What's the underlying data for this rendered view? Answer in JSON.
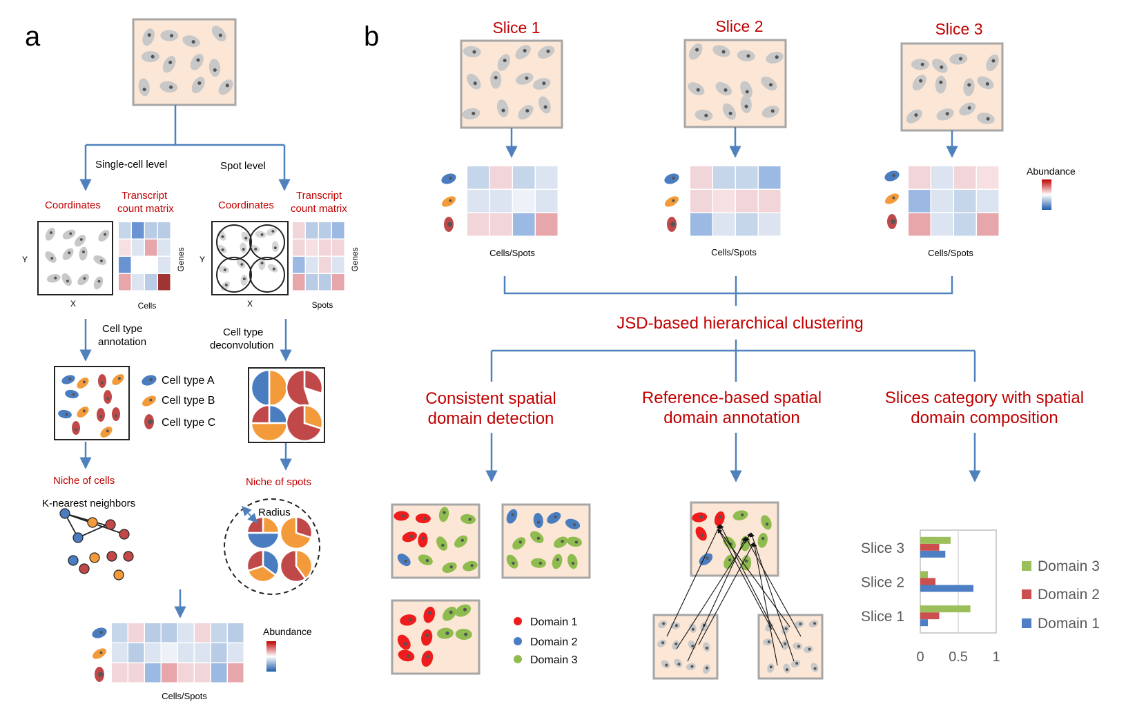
{
  "panel_a": {
    "label": "a",
    "branch_single": "Single-cell level",
    "branch_spot": "Spot level",
    "coordinates": "Coordinates",
    "transcript_line1": "Transcript",
    "transcript_line2": "count matrix",
    "axis_y": "Y",
    "axis_x": "X",
    "genes": "Genes",
    "cells": "Cells",
    "spots": "Spots",
    "annotation_line1": "Cell type",
    "annotation_line2": "annotation",
    "deconv_line1": "Cell type",
    "deconv_line2": "deconvolution",
    "cell_type_a": "Cell type A",
    "cell_type_b": "Cell type B",
    "cell_type_c": "Cell type C",
    "niche_cells": "Niche of cells",
    "niche_spots": "Niche of spots",
    "knn": "K-nearest neighbors",
    "radius": "Radius",
    "abundance": "Abundance",
    "cells_spots": "Cells/Spots"
  },
  "panel_b": {
    "label": "b",
    "slices": [
      "Slice 1",
      "Slice 2",
      "Slice 3"
    ],
    "cells_spots": "Cells/Spots",
    "abundance": "Abundance",
    "jsd": "JSD-based hierarchical clustering",
    "task1_line1": "Consistent spatial",
    "task1_line2": "domain detection",
    "task2_line1": "Reference-based spatial",
    "task2_line2": "domain annotation",
    "task3_line1": "Slices category with spatial",
    "task3_line2": "domain composition",
    "domains": [
      "Domain 1",
      "Domain 2",
      "Domain 3"
    ],
    "colors": {
      "domain1": "#ee1c1c",
      "domain2": "#4a7cc0",
      "domain3": "#8fbc4e",
      "cat_d1": "#4e7fc4",
      "cat_d2": "#cc4f4f",
      "cat_d3": "#9bbf5b",
      "accent_red": "#c00000",
      "line_blue": "#4f81bd"
    }
  },
  "chart_data": {
    "type": "bar",
    "orientation": "horizontal",
    "categories": [
      "Slice 1",
      "Slice 2",
      "Slice 3"
    ],
    "series": [
      {
        "name": "Domain 1",
        "values": [
          0.1,
          0.7,
          0.33
        ]
      },
      {
        "name": "Domain 2",
        "values": [
          0.25,
          0.2,
          0.25
        ]
      },
      {
        "name": "Domain 3",
        "values": [
          0.66,
          0.1,
          0.4
        ]
      }
    ],
    "xticks": [
      "0",
      "0.5",
      "1"
    ],
    "xlim": [
      0,
      1
    ],
    "legend_placement": "right"
  }
}
